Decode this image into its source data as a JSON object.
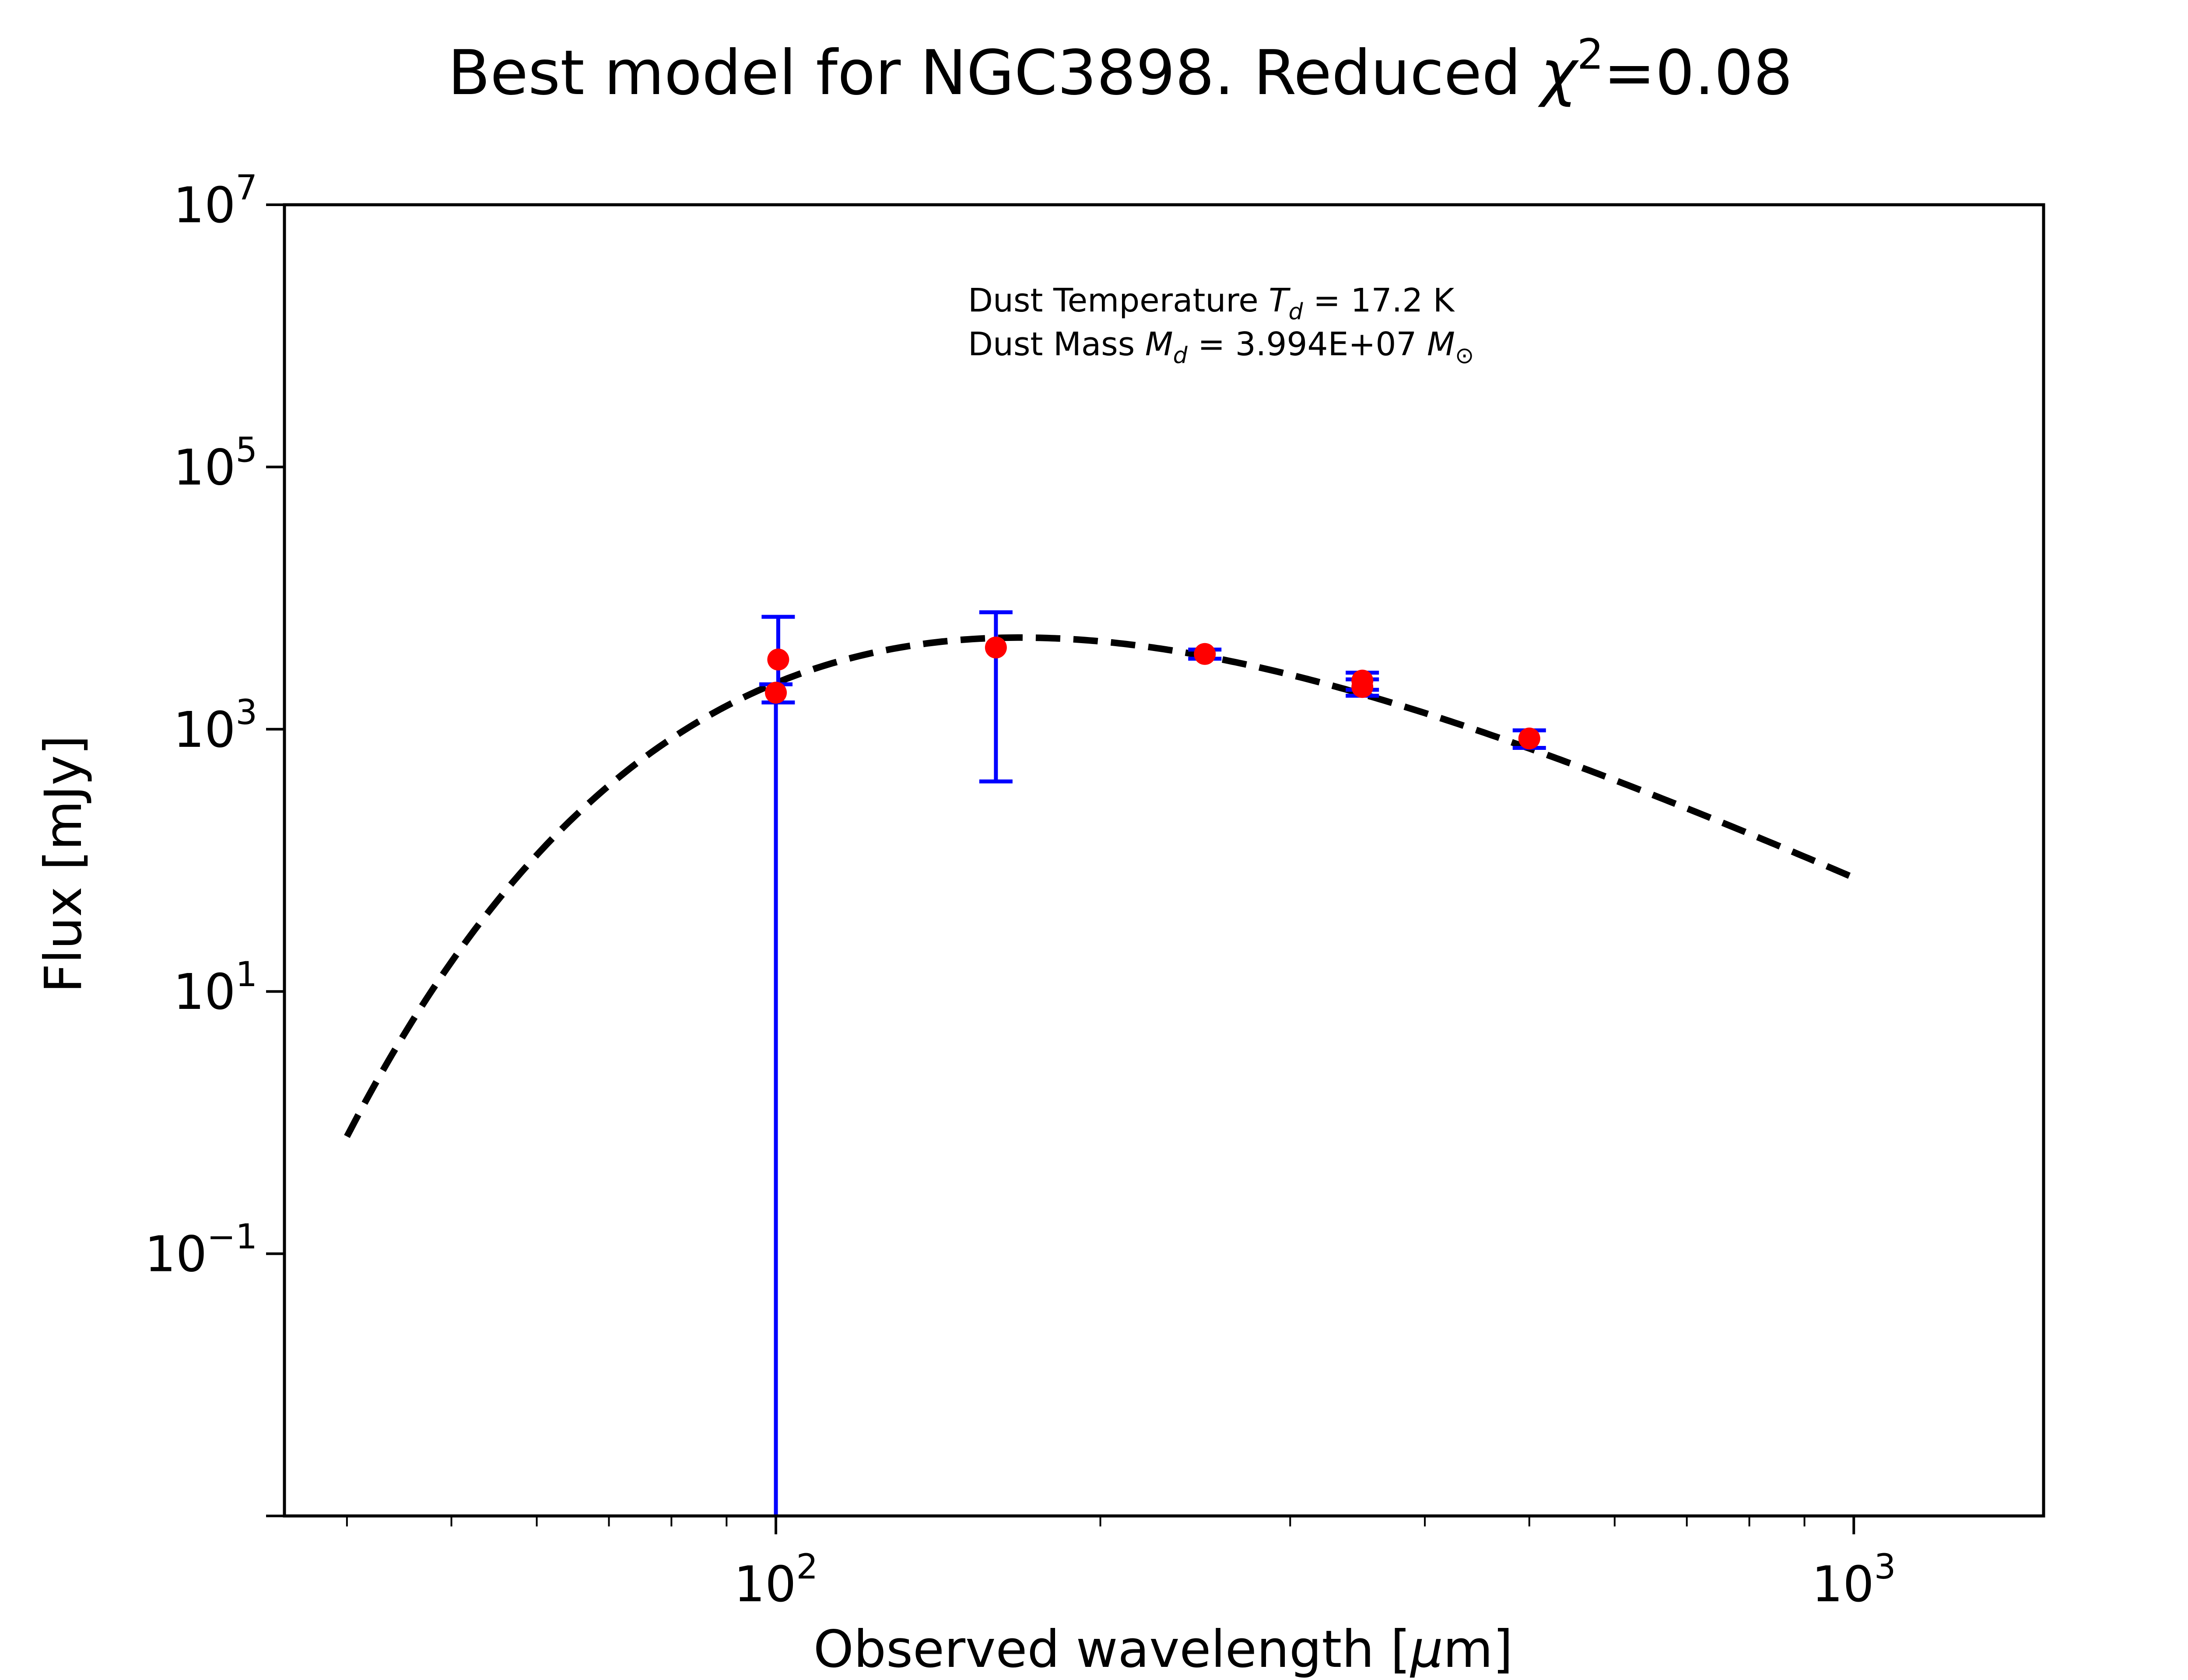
{
  "chart_data": {
    "type": "scatter",
    "title": {
      "main": "Best model for NGC3898. Reduced ",
      "chi": "χ",
      "sq": "2",
      "value": "=0.08"
    },
    "xlabel": {
      "pre": "Observed wavelength [",
      "mu": "μ",
      "post": "m]"
    },
    "ylabel": "Flux [mJy]",
    "x_scale": "log",
    "y_scale": "log",
    "xlim": [
      35,
      1500
    ],
    "ylim": [
      0.001,
      10000000
    ],
    "x_ticks": [
      {
        "value": 100,
        "base": "10",
        "exp": "2"
      },
      {
        "value": 1000,
        "base": "10",
        "exp": "3"
      }
    ],
    "y_ticks": [
      {
        "value": 0.1,
        "base": "10",
        "exp": "−1"
      },
      {
        "value": 10,
        "base": "10",
        "exp": "1"
      },
      {
        "value": 1000,
        "base": "10",
        "exp": "3"
      },
      {
        "value": 100000,
        "base": "10",
        "exp": "5"
      },
      {
        "value": 10000000,
        "base": "10",
        "exp": "7"
      }
    ],
    "annotations": {
      "temperature": {
        "pre": "Dust Temperature ",
        "sym": "T",
        "sub": "d",
        "post": " = 17.2 K"
      },
      "mass": {
        "pre": "Dust Mass ",
        "sym": "M",
        "sub": "d",
        "mid": " = 3.994E+07 ",
        "sym2": "M",
        "sub2": "⊙"
      }
    },
    "observations": {
      "marker_color": "#ff0000",
      "errorbar_color": "#0000ff",
      "points": [
        {
          "x": 100,
          "y": 1900,
          "yerr_low": 1899.999,
          "yerr_high": 300
        },
        {
          "x": 100.5,
          "y": 3400,
          "yerr_low": 1800,
          "yerr_high": 3800
        },
        {
          "x": 160,
          "y": 4200,
          "yerr_low": 3800,
          "yerr_high": 3600
        },
        {
          "x": 250,
          "y": 3750,
          "yerr_low": 300,
          "yerr_high": 300
        },
        {
          "x": 350,
          "y": 2350,
          "yerr_low": 350,
          "yerr_high": 350
        },
        {
          "x": 350,
          "y": 2100,
          "yerr_low": 300,
          "yerr_high": 300
        },
        {
          "x": 500,
          "y": 850,
          "yerr_low": 130,
          "yerr_high": 130
        }
      ]
    },
    "model": {
      "style": "dashed",
      "color": "#000000",
      "temperature_K": 17.2,
      "beta": 2,
      "peak_flux": 5000,
      "x_range": [
        40,
        1000
      ]
    }
  }
}
